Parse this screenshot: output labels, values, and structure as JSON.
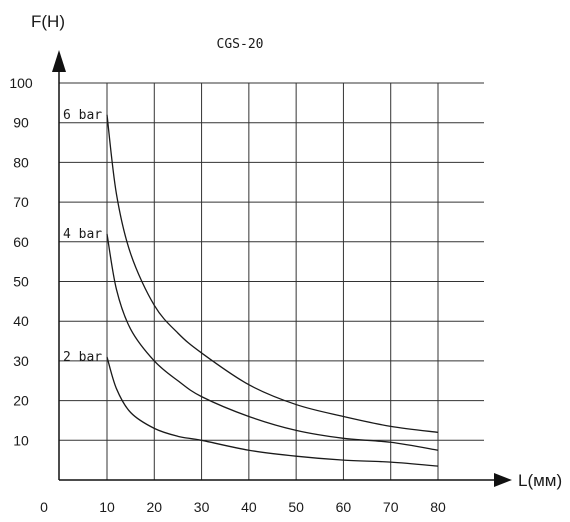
{
  "chart_data": {
    "type": "line",
    "title": "CGS-20",
    "xlabel": "L(мм)",
    "ylabel": "F(H)",
    "origin_label": "0",
    "xlim": [
      10,
      80
    ],
    "ylim": [
      0,
      100
    ],
    "x_ticks": [
      10,
      20,
      30,
      40,
      50,
      60,
      70,
      80
    ],
    "y_ticks": [
      10,
      20,
      30,
      40,
      50,
      60,
      70,
      80,
      90,
      100
    ],
    "grid": true,
    "series": [
      {
        "name": "6 bar",
        "x": [
          10,
          12,
          15,
          20,
          25,
          30,
          40,
          50,
          60,
          70,
          80
        ],
        "values": [
          92,
          72,
          57,
          44,
          37,
          32,
          24,
          19,
          16,
          13.5,
          12
        ]
      },
      {
        "name": "4 bar",
        "x": [
          10,
          12,
          15,
          20,
          25,
          30,
          40,
          50,
          60,
          70,
          80
        ],
        "values": [
          62,
          48,
          38,
          30,
          25,
          21,
          16,
          12.5,
          10.5,
          9.5,
          7.5
        ]
      },
      {
        "name": "2 bar",
        "x": [
          10,
          12,
          15,
          20,
          25,
          30,
          40,
          50,
          60,
          70,
          80
        ],
        "values": [
          31,
          23,
          17,
          13,
          11,
          10,
          7.5,
          6,
          5,
          4.5,
          3.5
        ]
      }
    ]
  }
}
